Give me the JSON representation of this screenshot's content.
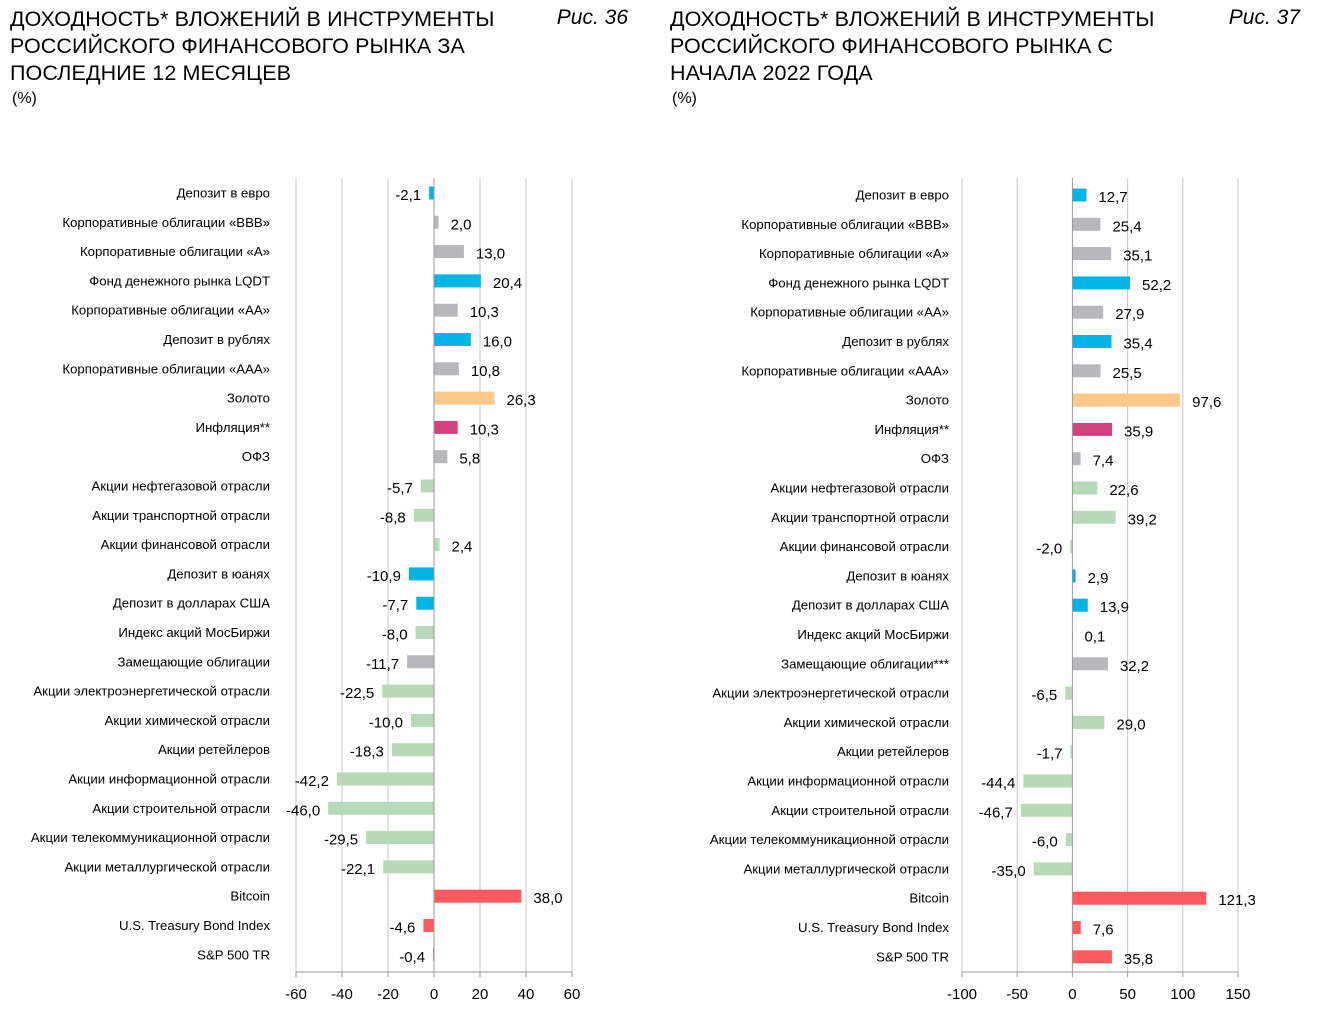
{
  "chart_data": [
    {
      "type": "bar",
      "orientation": "horizontal",
      "title": "ДОХОДНОСТЬ* ВЛОЖЕНИЙ В ИНСТРУМЕНТЫ РОССИЙСКОГО ФИНАНСОВОГО РЫНКА ЗА ПОСЛЕДНИЕ 12 МЕСЯЦЕВ",
      "subtitle": "(%)",
      "figure_label": "Рис. 36",
      "xlim": [
        -60,
        60
      ],
      "xticks": [
        "-60",
        "-40",
        "-20",
        "0",
        "20",
        "40",
        "60"
      ],
      "xtick_values": [
        -60,
        -40,
        -20,
        0,
        20,
        40,
        60
      ],
      "grid": "vertical",
      "categories": [
        "Депозит в евро",
        "Корпоративные облигации «BBB»",
        "Корпоративные облигации «A»",
        "Фонд денежного рынка LQDT",
        "Корпоративные облигации «AA»",
        "Депозит в рублях",
        "Корпоративные облигации «AAA»",
        "Золото",
        "Инфляция**",
        "ОФЗ",
        "Акции нефтегазовой отрасли",
        "Акции транспортной отрасли",
        "Акции финансовой отрасли",
        "Депозит в юанях",
        "Депозит в долларах США",
        "Индекс акций МосБиржи",
        "Замещающие облигации",
        "Акции электроэнергетической отрасли",
        "Акции химической отрасли",
        "Акции ретейлеров",
        "Акции информационной отрасли",
        "Акции строительной отрасли",
        "Акции телекоммуникационной отрасли",
        "Акции металлургической отрасли",
        "Bitcoin",
        "U.S. Treasury Bond Index",
        "S&P 500 TR"
      ],
      "values": [
        -2.1,
        2.0,
        13.0,
        20.4,
        10.3,
        16.0,
        10.8,
        26.3,
        10.3,
        5.8,
        -5.7,
        -8.8,
        2.4,
        -10.9,
        -7.7,
        -8.0,
        -11.7,
        -22.5,
        -10.0,
        -18.3,
        -42.2,
        -46.0,
        -29.5,
        -22.1,
        38.0,
        -4.6,
        -0.4
      ],
      "labels": [
        "-2,1",
        "2,0",
        "13,0",
        "20,4",
        "10,3",
        "16,0",
        "10,8",
        "26,3",
        "10,3",
        "5,8",
        "-5,7",
        "-8,8",
        "2,4",
        "-10,9",
        "-7,7",
        "-8,0",
        "-11,7",
        "-22,5",
        "-10,0",
        "-18,3",
        "-42,2",
        "-46,0",
        "-29,5",
        "-22,1",
        "38,0",
        "-4,6",
        "-0,4"
      ],
      "colors": [
        "#00b4e6",
        "#b8b8bc",
        "#b8b8bc",
        "#00b4e6",
        "#b8b8bc",
        "#00b4e6",
        "#b8b8bc",
        "#fcc98a",
        "#d2427f",
        "#b8b8bc",
        "#b7d9b7",
        "#b7d9b7",
        "#b7d9b7",
        "#00b4e6",
        "#00b4e6",
        "#b7d9b7",
        "#b8b8bc",
        "#b7d9b7",
        "#b7d9b7",
        "#b7d9b7",
        "#b7d9b7",
        "#b7d9b7",
        "#b7d9b7",
        "#b7d9b7",
        "#ff5a5f",
        "#ff5a5f",
        "#ff5a5f"
      ]
    },
    {
      "type": "bar",
      "orientation": "horizontal",
      "title": "ДОХОДНОСТЬ* ВЛОЖЕНИЙ В ИНСТРУМЕНТЫ РОССИЙСКОГО ФИНАНСОВОГО РЫНКА С НАЧАЛА 2022 ГОДА",
      "subtitle": "(%)",
      "figure_label": "Рис. 37",
      "xlim": [
        -100,
        150
      ],
      "xticks": [
        "-100",
        "-50",
        "0",
        "50",
        "100",
        "150"
      ],
      "xtick_values": [
        -100,
        -50,
        0,
        50,
        100,
        150
      ],
      "grid": "vertical",
      "categories": [
        "Депозит в евро",
        "Корпоративные облигации «BBB»",
        "Корпоративные облигации «A»",
        "Фонд денежного рынка LQDT",
        "Корпоративные облигации «AA»",
        "Депозит в рублях",
        "Корпоративные облигации «AAA»",
        "Золото",
        "Инфляция**",
        "ОФЗ",
        "Акции нефтегазовой отрасли",
        "Акции транспортной отрасли",
        "Акции финансовой отрасли",
        "Депозит в юанях",
        "Депозит в долларах США",
        "Индекс акций МосБиржи",
        "Замещающие облигации***",
        "Акции электроэнергетической отрасли",
        "Акции химической отрасли",
        "Акции ретейлеров",
        "Акции информационной отрасли",
        "Акции строительной отрасли",
        "Акции телекоммуникационной отрасли",
        "Акции металлургической отрасли",
        "Bitcoin",
        "U.S. Treasury Bond Index",
        "S&P 500 TR"
      ],
      "values": [
        12.7,
        25.4,
        35.1,
        52.2,
        27.9,
        35.4,
        25.5,
        97.6,
        35.9,
        7.4,
        22.6,
        39.2,
        -2.0,
        2.9,
        13.9,
        0.1,
        32.2,
        -6.5,
        29.0,
        -1.7,
        -44.4,
        -46.7,
        -6.0,
        -35.0,
        121.3,
        7.6,
        35.8
      ],
      "labels": [
        "12,7",
        "25,4",
        "35,1",
        "52,2",
        "27,9",
        "35,4",
        "25,5",
        "97,6",
        "35,9",
        "7,4",
        "22,6",
        "39,2",
        "-2,0",
        "2,9",
        "13,9",
        "0,1",
        "32,2",
        "-6,5",
        "29,0",
        "-1,7",
        "-44,4",
        "-46,7",
        "-6,0",
        "-35,0",
        "121,3",
        "7,6",
        "35,8"
      ],
      "colors": [
        "#00b4e6",
        "#b8b8bc",
        "#b8b8bc",
        "#00b4e6",
        "#b8b8bc",
        "#00b4e6",
        "#b8b8bc",
        "#fcc98a",
        "#d2427f",
        "#b8b8bc",
        "#b7d9b7",
        "#b7d9b7",
        "#b7d9b7",
        "#00b4e6",
        "#00b4e6",
        "#b7d9b7",
        "#b8b8bc",
        "#b7d9b7",
        "#b7d9b7",
        "#b7d9b7",
        "#b7d9b7",
        "#b7d9b7",
        "#b7d9b7",
        "#b7d9b7",
        "#ff5a5f",
        "#ff5a5f",
        "#ff5a5f"
      ]
    }
  ]
}
